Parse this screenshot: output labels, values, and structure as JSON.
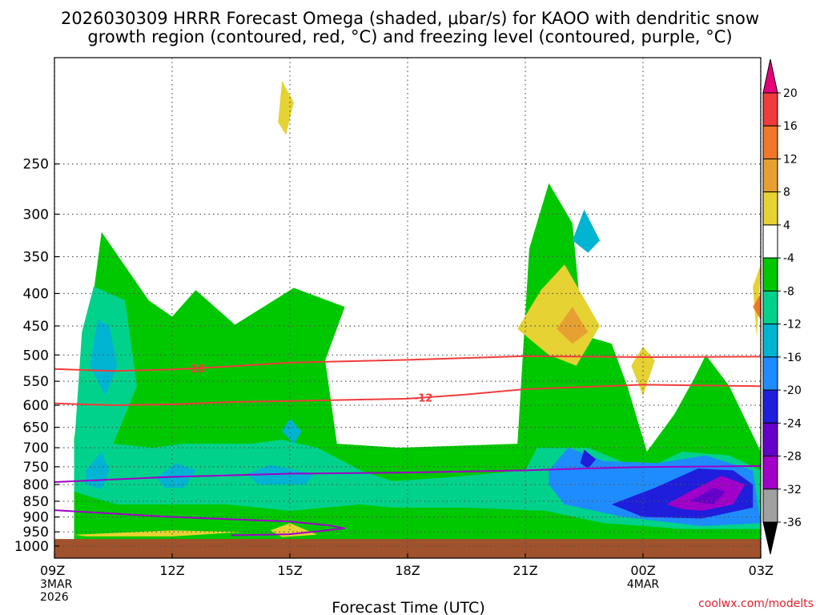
{
  "chart_data": {
    "type": "heatmap",
    "title_line1": "2026030309 HRRR Forecast Omega (shaded, μbar/s) for KAOO with dendritic snow",
    "title_line2": "growth region (contoured, red, °C) and freezing level (contoured, purple, °C)",
    "xlabel": "Forecast Time (UTC)",
    "ylabel": "",
    "x_hours": [
      0,
      3,
      6,
      9,
      12,
      15,
      18
    ],
    "x_ticks": [
      {
        "hour": 0,
        "label": "09Z",
        "sub1": "3MAR",
        "sub2": "2026"
      },
      {
        "hour": 3,
        "label": "12Z",
        "sub1": "",
        "sub2": ""
      },
      {
        "hour": 6,
        "label": "15Z",
        "sub1": "",
        "sub2": ""
      },
      {
        "hour": 9,
        "label": "18Z",
        "sub1": "",
        "sub2": ""
      },
      {
        "hour": 12,
        "label": "21Z",
        "sub1": "",
        "sub2": ""
      },
      {
        "hour": 15,
        "label": "00Z",
        "sub1": "4MAR",
        "sub2": ""
      },
      {
        "hour": 18,
        "label": "03Z",
        "sub1": "",
        "sub2": ""
      }
    ],
    "xlim": [
      0,
      18
    ],
    "y_ticks": [
      "250",
      "300",
      "350",
      "400",
      "450",
      "500",
      "550",
      "600",
      "650",
      "700",
      "750",
      "800",
      "850",
      "900",
      "950",
      "1000"
    ],
    "y_values": [
      250,
      300,
      350,
      400,
      450,
      500,
      550,
      600,
      650,
      700,
      750,
      800,
      850,
      900,
      950,
      1000
    ],
    "ylim_hPa": [
      1045,
      170
    ],
    "colorbar": {
      "labels": [
        "20",
        "16",
        "12",
        "8",
        "4",
        "-4",
        "-8",
        "-12",
        "-16",
        "-20",
        "-24",
        "-28",
        "-32",
        "-36"
      ],
      "bins": [
        {
          "lo": 20,
          "hi": 24,
          "color": "#e8007a"
        },
        {
          "lo": 16,
          "hi": 20,
          "color": "#f03c3c"
        },
        {
          "lo": 12,
          "hi": 16,
          "color": "#f07828"
        },
        {
          "lo": 8,
          "hi": 12,
          "color": "#e6a032"
        },
        {
          "lo": 4,
          "hi": 8,
          "color": "#e6d232"
        },
        {
          "lo": -4,
          "hi": 4,
          "color": "#ffffff"
        },
        {
          "lo": -8,
          "hi": -4,
          "color": "#00c800"
        },
        {
          "lo": -12,
          "hi": -8,
          "color": "#00d28c"
        },
        {
          "lo": -16,
          "hi": -12,
          "color": "#00b4d2"
        },
        {
          "lo": -20,
          "hi": -16,
          "color": "#1e8cff"
        },
        {
          "lo": -24,
          "hi": -20,
          "color": "#1e1edc"
        },
        {
          "lo": -28,
          "hi": -24,
          "color": "#6400c8"
        },
        {
          "lo": -32,
          "hi": -28,
          "color": "#a000c8"
        },
        {
          "lo": -36,
          "hi": -32,
          "color": "#a0a0a0"
        },
        {
          "lo": -40,
          "hi": -36,
          "color": "#000000"
        }
      ]
    },
    "colors": {
      "green": "#00c800",
      "teal": "#00d28c",
      "cyan": "#00b4d2",
      "blue": "#1e8cff",
      "dark_blue": "#1e1edc",
      "purple": "#a000c8",
      "violet": "#6400c8",
      "yellow": "#e6d232",
      "gold": "#e6a032",
      "orange": "#f07828",
      "ground": "#a0522d",
      "dgz_contour": "#f03c3c",
      "freezing_contour": "#a000c8",
      "grid": "#555555"
    },
    "dgz_contours": [
      {
        "label": "-18",
        "label_hour": 3.6,
        "points": [
          [
            0,
            526
          ],
          [
            1.5,
            530
          ],
          [
            3,
            527
          ],
          [
            4.5,
            521
          ],
          [
            6,
            514
          ],
          [
            9,
            509
          ],
          [
            12,
            502
          ],
          [
            15,
            504
          ],
          [
            18,
            503
          ]
        ]
      },
      {
        "label": "-12",
        "label_hour": 9.4,
        "points": [
          [
            0,
            596
          ],
          [
            1.5,
            600
          ],
          [
            3,
            598
          ],
          [
            4.5,
            593
          ],
          [
            6,
            591
          ],
          [
            9,
            586
          ],
          [
            10.5,
            577
          ],
          [
            12,
            566
          ],
          [
            15,
            557
          ],
          [
            18,
            560
          ]
        ]
      }
    ],
    "freezing_contours": [
      {
        "label": "",
        "points": [
          [
            0,
            793
          ],
          [
            3,
            778
          ],
          [
            6,
            769
          ],
          [
            9,
            766
          ],
          [
            12,
            760
          ],
          [
            13.5,
            755
          ],
          [
            15,
            751
          ],
          [
            18,
            748
          ]
        ]
      },
      {
        "label": "",
        "points": [
          [
            0,
            878
          ],
          [
            3,
            900
          ],
          [
            6,
            915
          ],
          [
            7,
            928
          ],
          [
            7.4,
            938
          ],
          [
            6,
            958
          ],
          [
            4.5,
            962
          ]
        ]
      }
    ],
    "shaded_regions": [
      {
        "name": "green",
        "points": [
          [
            0.5,
            680
          ],
          [
            1.2,
            320
          ],
          [
            2.4,
            410
          ],
          [
            3,
            435
          ],
          [
            3.6,
            395
          ],
          [
            4.6,
            448
          ],
          [
            6.1,
            392
          ],
          [
            7.4,
            420
          ],
          [
            6.9,
            510
          ],
          [
            7.2,
            690
          ],
          [
            8.8,
            700
          ],
          [
            11.8,
            690
          ],
          [
            12.1,
            340
          ],
          [
            12.6,
            268
          ],
          [
            13.2,
            310
          ],
          [
            13.4,
            420
          ],
          [
            13.2,
            460
          ],
          [
            14.2,
            480
          ],
          [
            14.6,
            560
          ],
          [
            15.1,
            710
          ],
          [
            15.8,
            620
          ],
          [
            16.3,
            545
          ],
          [
            16.6,
            500
          ],
          [
            17.2,
            560
          ],
          [
            18,
            710
          ],
          [
            18,
            1000
          ],
          [
            0.5,
            1000
          ]
        ]
      },
      {
        "name": "teal",
        "points": [
          [
            0.5,
            700
          ],
          [
            0.7,
            460
          ],
          [
            1,
            390
          ],
          [
            1.8,
            410
          ],
          [
            2.1,
            560
          ],
          [
            1.5,
            690
          ],
          [
            2.5,
            700
          ],
          [
            3.3,
            690
          ],
          [
            5,
            690
          ],
          [
            5.8,
            680
          ],
          [
            6.7,
            700
          ],
          [
            7.8,
            760
          ],
          [
            8.6,
            790
          ],
          [
            10,
            780
          ],
          [
            12,
            760
          ],
          [
            12.3,
            700
          ],
          [
            13.6,
            700
          ],
          [
            15,
            760
          ],
          [
            16,
            710
          ],
          [
            17.2,
            720
          ],
          [
            18,
            760
          ],
          [
            18,
            940
          ],
          [
            16,
            940
          ],
          [
            14,
            920
          ],
          [
            12.5,
            880
          ],
          [
            10.5,
            870
          ],
          [
            8.6,
            870
          ],
          [
            7.8,
            860
          ],
          [
            6,
            880
          ],
          [
            4.4,
            860
          ],
          [
            2.5,
            860
          ],
          [
            1.6,
            860
          ],
          [
            1,
            840
          ],
          [
            0.5,
            820
          ]
        ]
      },
      {
        "name": "cyan",
        "points": [
          [
            0.8,
            800
          ],
          [
            0.8,
            760
          ],
          [
            1.2,
            710
          ],
          [
            1.4,
            760
          ],
          [
            1.2,
            815
          ]
        ]
      },
      {
        "name": "cyan",
        "points": [
          [
            0.9,
            520
          ],
          [
            1.1,
            440
          ],
          [
            1.4,
            450
          ],
          [
            1.6,
            520
          ],
          [
            1.3,
            580
          ]
        ]
      },
      {
        "name": "cyan",
        "points": [
          [
            2.6,
            780
          ],
          [
            3.1,
            740
          ],
          [
            3.6,
            760
          ],
          [
            3.3,
            810
          ],
          [
            2.8,
            810
          ]
        ]
      },
      {
        "name": "cyan",
        "points": [
          [
            4.9,
            770
          ],
          [
            5.5,
            745
          ],
          [
            6.6,
            770
          ],
          [
            6.4,
            800
          ],
          [
            5.2,
            800
          ]
        ]
      },
      {
        "name": "cyan",
        "points": [
          [
            5.8,
            660
          ],
          [
            6,
            630
          ],
          [
            6.3,
            660
          ],
          [
            6.1,
            690
          ]
        ]
      },
      {
        "name": "cyan",
        "points": [
          [
            13.2,
            330
          ],
          [
            13.5,
            295
          ],
          [
            13.9,
            330
          ],
          [
            13.6,
            345
          ]
        ]
      },
      {
        "name": "blue",
        "points": [
          [
            12.6,
            760
          ],
          [
            13.1,
            700
          ],
          [
            14,
            735
          ],
          [
            15.4,
            740
          ],
          [
            16.6,
            720
          ],
          [
            17.8,
            760
          ],
          [
            18,
            920
          ],
          [
            16.5,
            930
          ],
          [
            14.5,
            900
          ],
          [
            13,
            860
          ],
          [
            12.6,
            800
          ]
        ]
      },
      {
        "name": "dark_blue",
        "points": [
          [
            13.4,
            740
          ],
          [
            13.5,
            705
          ],
          [
            13.8,
            730
          ],
          [
            13.6,
            755
          ]
        ]
      },
      {
        "name": "dark_blue",
        "points": [
          [
            14.2,
            860
          ],
          [
            15.3,
            810
          ],
          [
            16.4,
            755
          ],
          [
            17.3,
            760
          ],
          [
            17.8,
            800
          ],
          [
            17.8,
            870
          ],
          [
            16.5,
            905
          ],
          [
            15,
            900
          ]
        ]
      },
      {
        "name": "purple",
        "points": [
          [
            15.6,
            860
          ],
          [
            16.2,
            820
          ],
          [
            17,
            775
          ],
          [
            17.6,
            800
          ],
          [
            17.3,
            860
          ],
          [
            16.5,
            880
          ],
          [
            16,
            875
          ]
        ]
      },
      {
        "name": "violet",
        "points": [
          [
            16.2,
            850
          ],
          [
            16.8,
            810
          ],
          [
            17.1,
            820
          ],
          [
            16.8,
            860
          ]
        ]
      },
      {
        "name": "yellow",
        "points": [
          [
            11.8,
            455
          ],
          [
            12.4,
            395
          ],
          [
            13,
            360
          ],
          [
            13.9,
            450
          ],
          [
            13.3,
            520
          ],
          [
            12.6,
            500
          ]
        ]
      },
      {
        "name": "gold",
        "points": [
          [
            12.8,
            455
          ],
          [
            13.2,
            420
          ],
          [
            13.6,
            460
          ],
          [
            13.2,
            480
          ]
        ]
      },
      {
        "name": "yellow",
        "points": [
          [
            17.9,
            470
          ],
          [
            18,
            360
          ],
          [
            17.8,
            390
          ]
        ]
      },
      {
        "name": "orange",
        "points": [
          [
            17.8,
            420
          ],
          [
            18,
            400
          ],
          [
            18,
            440
          ]
        ]
      },
      {
        "name": "yellow",
        "points": [
          [
            14.7,
            520
          ],
          [
            15,
            485
          ],
          [
            15.3,
            510
          ],
          [
            15,
            580
          ]
        ]
      },
      {
        "name": "yellow",
        "points": [
          [
            0.5,
            960
          ],
          [
            3,
            945
          ],
          [
            4.8,
            950
          ],
          [
            3,
            966
          ],
          [
            0.8,
            966
          ]
        ]
      },
      {
        "name": "yellow",
        "points": [
          [
            5.5,
            945
          ],
          [
            6,
            920
          ],
          [
            6.7,
            960
          ],
          [
            5.8,
            968
          ]
        ]
      },
      {
        "name": "yellow",
        "points": [
          [
            5.8,
            185
          ],
          [
            6.1,
            200
          ],
          [
            5.9,
            225
          ],
          [
            5.7,
            215
          ]
        ]
      }
    ],
    "annotations": [
      {
        "text": "coolwx.com/modelts"
      }
    ]
  }
}
